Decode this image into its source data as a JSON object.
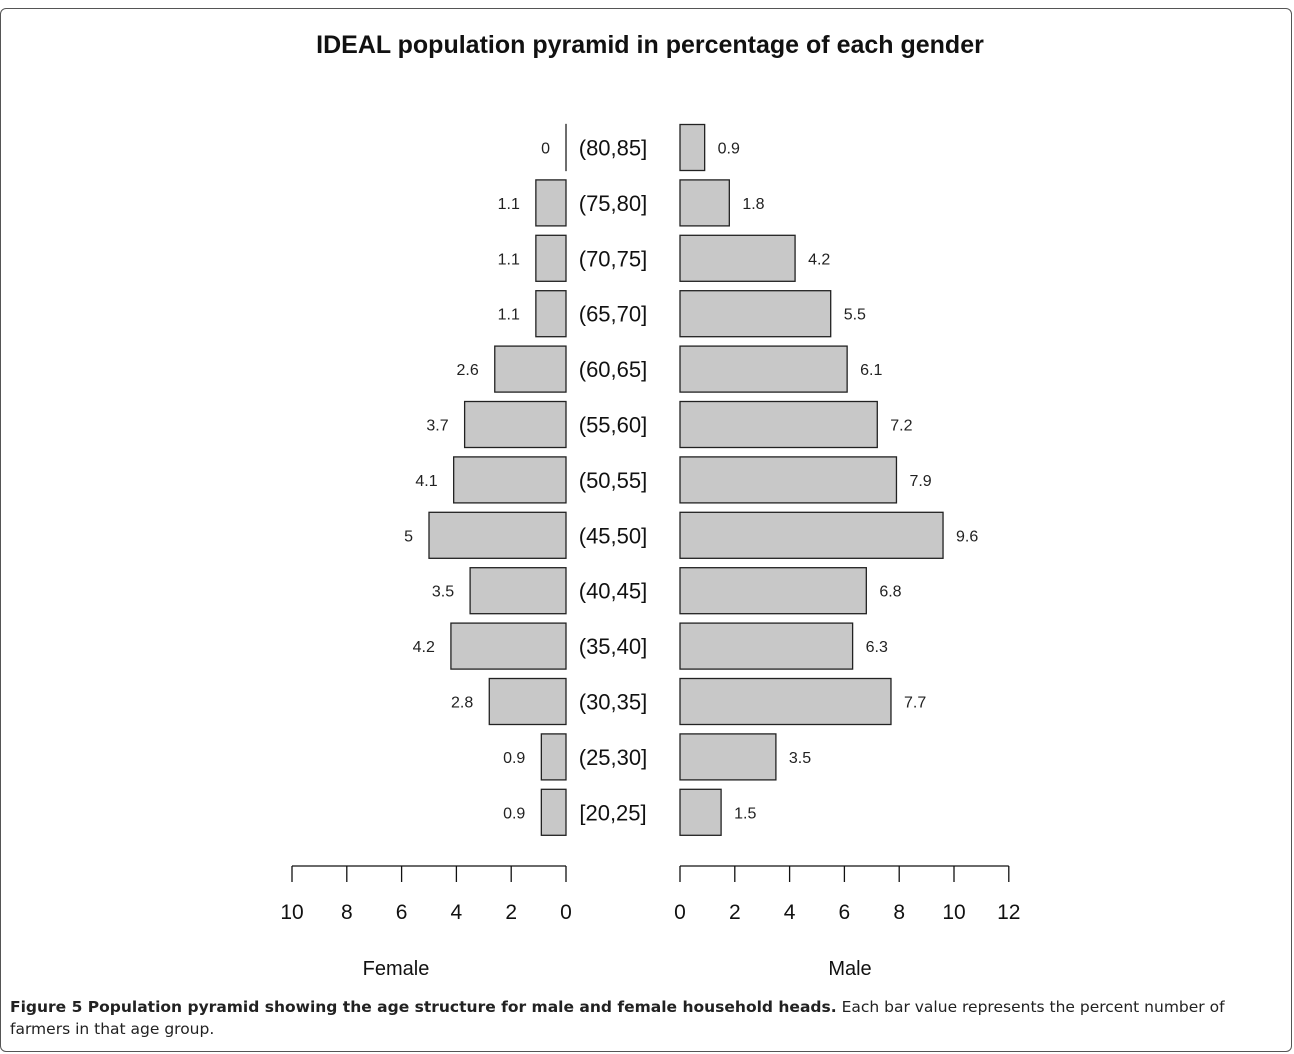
{
  "chart_data": {
    "type": "bar",
    "title": "IDEAL population pyramid in percentage of each gender",
    "categories": [
      "(80,85]",
      "(75,80]",
      "(70,75]",
      "(65,70]",
      "(60,65]",
      "(55,60]",
      "(50,55]",
      "(45,50]",
      "(40,45]",
      "(35,40]",
      "(30,35]",
      "(25,30]",
      "[20,25]"
    ],
    "series": [
      {
        "name": "Female",
        "values": [
          0,
          1.1,
          1.1,
          1.1,
          2.6,
          3.7,
          4.1,
          5,
          3.5,
          4.2,
          2.8,
          0.9,
          0.9
        ]
      },
      {
        "name": "Male",
        "values": [
          0.9,
          1.8,
          4.2,
          5.5,
          6.1,
          7.2,
          7.9,
          9.6,
          6.8,
          6.3,
          7.7,
          3.5,
          1.5
        ]
      }
    ],
    "female_axis": {
      "label": "Female",
      "ticks": [
        10,
        8,
        6,
        4,
        2,
        0
      ],
      "range": [
        0,
        10
      ]
    },
    "male_axis": {
      "label": "Male",
      "ticks": [
        0,
        2,
        4,
        6,
        8,
        10,
        12
      ],
      "range": [
        0,
        12
      ]
    },
    "bar_color": "#c8c8c8",
    "grid": false
  },
  "caption": {
    "title": "Figure 5 Population pyramid showing the age structure for male and female household heads.",
    "text": "Each bar value represents the percent number of farmers in that age group."
  }
}
